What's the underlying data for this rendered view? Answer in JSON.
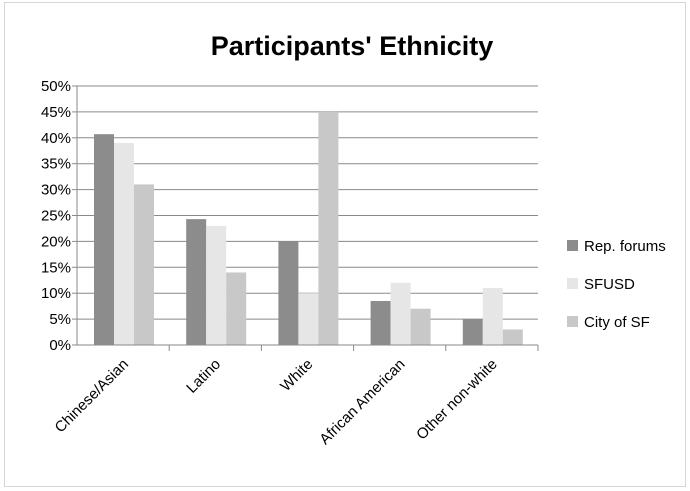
{
  "chart_data": {
    "type": "bar",
    "title": "Participants' Ethnicity",
    "categories": [
      "Chinese/Asian",
      "Latino",
      "White",
      "African American",
      "Other non-white"
    ],
    "series": [
      {
        "name": "Rep. forums",
        "values": [
          40.7,
          24.3,
          20,
          8.5,
          5
        ],
        "color": "#8c8c8c"
      },
      {
        "name": "SFUSD",
        "values": [
          39,
          23,
          10,
          12,
          11
        ],
        "color": "#e6e6e6"
      },
      {
        "name": "City of SF",
        "values": [
          31,
          14,
          45,
          7,
          3
        ],
        "color": "#c8c8c8"
      }
    ],
    "ylim": [
      0,
      50
    ],
    "yticks": [
      "0%",
      "5%",
      "10%",
      "15%",
      "20%",
      "25%",
      "30%",
      "35%",
      "40%",
      "45%",
      "50%"
    ],
    "grid": true,
    "legend_position": "right"
  }
}
